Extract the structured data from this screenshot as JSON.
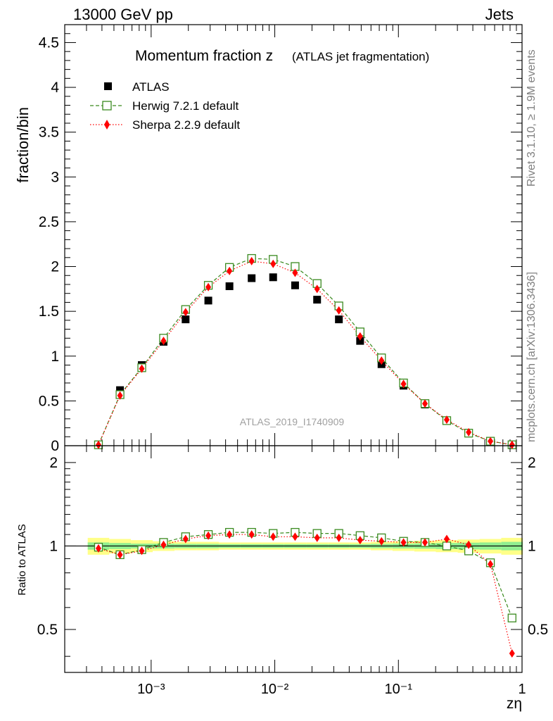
{
  "header": {
    "left": "13000 GeV pp",
    "right": "Jets"
  },
  "side_labels": {
    "rivet": "Rivet 3.1.10, ≥ 1.9M events",
    "mcplots": "mcplots.cern.ch [arXiv:1306.3436]"
  },
  "chart_data": [
    {
      "type": "scatter",
      "title_main": "Momentum fraction z",
      "title_sub": "(ATLAS jet fragmentation)",
      "ylabel": "fraction/bin",
      "xscale": "log",
      "xlim": [
        0.0002,
        1
      ],
      "ylim": [
        0,
        4.7
      ],
      "yticks": [
        "0",
        "0.5",
        "1",
        "1.5",
        "2",
        "2.5",
        "3",
        "3.5",
        "4",
        "4.5"
      ],
      "analysis_label": "ATLAS_2019_I1740909",
      "legend_position": "top-left",
      "x": [
        0.000375,
        0.00056,
        0.00084,
        0.00126,
        0.0019,
        0.0029,
        0.0043,
        0.0065,
        0.0097,
        0.0146,
        0.022,
        0.033,
        0.049,
        0.073,
        0.11,
        0.164,
        0.246,
        0.37,
        0.555,
        0.83
      ],
      "series": [
        {
          "name": "ATLAS",
          "color": "#000000",
          "marker": "square-filled",
          "values": [
            0.01,
            0.62,
            0.9,
            1.16,
            1.41,
            1.62,
            1.78,
            1.87,
            1.88,
            1.79,
            1.63,
            1.41,
            1.17,
            0.91,
            0.67,
            0.46,
            0.28,
            0.14,
            0.05,
            0.01
          ]
        },
        {
          "name": "Herwig 7.2.1 default",
          "color": "#3a8a1f",
          "marker": "square-open",
          "line": "dashed",
          "values": [
            0.01,
            0.57,
            0.87,
            1.2,
            1.52,
            1.79,
            1.99,
            2.09,
            2.08,
            2.0,
            1.81,
            1.56,
            1.27,
            0.98,
            0.7,
            0.47,
            0.28,
            0.14,
            0.05,
            0.01
          ]
        },
        {
          "name": "Sherpa 2.2.9 default",
          "color": "#ff0000",
          "marker": "diamond-filled",
          "line": "dotted",
          "values": [
            0.01,
            0.56,
            0.86,
            1.17,
            1.49,
            1.77,
            1.95,
            2.06,
            2.03,
            1.93,
            1.75,
            1.51,
            1.22,
            0.95,
            0.69,
            0.47,
            0.29,
            0.15,
            0.05,
            0.01
          ]
        }
      ]
    },
    {
      "type": "scatter",
      "ylabel": "Ratio to ATLAS",
      "xlabel": "zη",
      "xscale": "log",
      "xlim": [
        0.0002,
        1
      ],
      "ylim": [
        0.35,
        2.3
      ],
      "yticks": [
        "0.5",
        "1",
        "2"
      ],
      "xticks": [
        "10⁻³",
        "10⁻²",
        "10⁻¹",
        "1"
      ],
      "x": [
        0.000375,
        0.00056,
        0.00084,
        0.00126,
        0.0019,
        0.0029,
        0.0043,
        0.0065,
        0.0097,
        0.0146,
        0.022,
        0.033,
        0.049,
        0.073,
        0.11,
        0.164,
        0.246,
        0.37,
        0.555,
        0.83
      ],
      "band_outer": [
        0.07,
        0.06,
        0.05,
        0.04,
        0.035,
        0.035,
        0.03,
        0.03,
        0.03,
        0.03,
        0.03,
        0.03,
        0.03,
        0.035,
        0.04,
        0.045,
        0.05,
        0.055,
        0.06,
        0.07
      ],
      "band_inner": [
        0.03,
        0.025,
        0.02,
        0.02,
        0.018,
        0.018,
        0.016,
        0.016,
        0.016,
        0.016,
        0.016,
        0.016,
        0.016,
        0.018,
        0.02,
        0.022,
        0.025,
        0.028,
        0.03,
        0.035
      ],
      "series": [
        {
          "name": "Herwig 7.2.1 default",
          "color": "#3a8a1f",
          "marker": "square-open",
          "line": "dashed",
          "values": [
            0.99,
            0.93,
            0.97,
            1.03,
            1.08,
            1.1,
            1.12,
            1.12,
            1.11,
            1.12,
            1.11,
            1.11,
            1.09,
            1.07,
            1.04,
            1.03,
            1.0,
            0.96,
            0.87,
            0.55
          ]
        },
        {
          "name": "Sherpa 2.2.9 default",
          "color": "#ff0000",
          "marker": "diamond-filled",
          "line": "dotted",
          "values": [
            0.98,
            0.93,
            0.96,
            1.01,
            1.06,
            1.09,
            1.1,
            1.1,
            1.08,
            1.08,
            1.07,
            1.07,
            1.05,
            1.04,
            1.03,
            1.03,
            1.06,
            1.01,
            0.86,
            0.41
          ]
        }
      ]
    }
  ]
}
